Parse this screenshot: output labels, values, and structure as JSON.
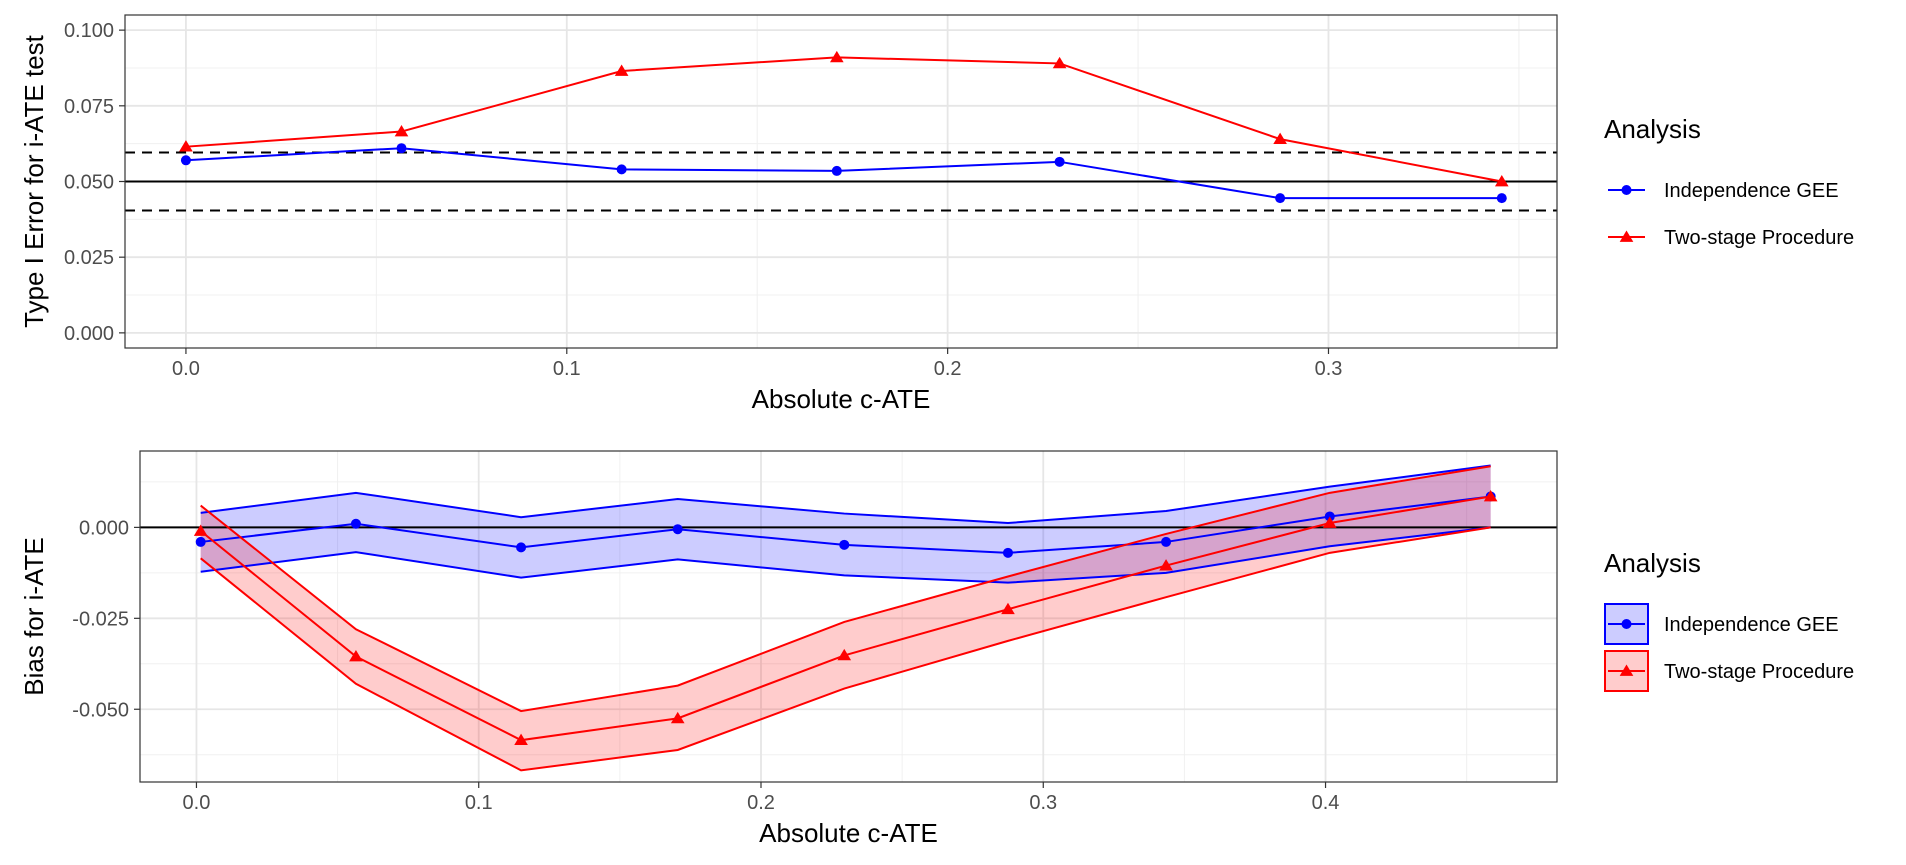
{
  "chart_data": [
    {
      "type": "line",
      "id": "top",
      "ylabel": "Type I Error for i-ATE test",
      "xlabel": "Absolute c-ATE",
      "xlim": [
        -0.016,
        0.36
      ],
      "ylim": [
        -0.005,
        0.105
      ],
      "x_ticks": [
        0.0,
        0.1,
        0.2,
        0.3
      ],
      "x_tick_labels": [
        "0.0",
        "0.1",
        "0.2",
        "0.3"
      ],
      "y_ticks": [
        0.0,
        0.025,
        0.05,
        0.075,
        0.1
      ],
      "y_tick_labels": [
        "0.000",
        "0.025",
        "0.050",
        "0.075",
        "0.100"
      ],
      "reference_lines": [
        {
          "y": 0.05,
          "style": "solid"
        },
        {
          "y": 0.0596,
          "style": "dashed"
        },
        {
          "y": 0.0404,
          "style": "dashed"
        }
      ],
      "series": [
        {
          "name": "Independence GEE",
          "color": "#0000ff",
          "marker": "circle",
          "x": [
            0.0,
            0.0566,
            0.1144,
            0.1709,
            0.2294,
            0.2873,
            0.3455
          ],
          "y": [
            0.057,
            0.061,
            0.054,
            0.0535,
            0.0565,
            0.0445,
            0.0445
          ]
        },
        {
          "name": "Two-stage Procedure",
          "color": "#ff0000",
          "marker": "triangle",
          "x": [
            0.0,
            0.0566,
            0.1144,
            0.1709,
            0.2294,
            0.2873,
            0.3455
          ],
          "y": [
            0.0615,
            0.0665,
            0.0865,
            0.091,
            0.089,
            0.064,
            0.05
          ]
        }
      ],
      "legend": {
        "title": "Analysis",
        "position": "right"
      }
    },
    {
      "type": "area",
      "id": "bottom",
      "ylabel": "Bias for i-ATE",
      "xlabel": "Absolute c-ATE",
      "xlim": [
        -0.02,
        0.482
      ],
      "ylim": [
        -0.07,
        0.021
      ],
      "x_ticks": [
        0.0,
        0.1,
        0.2,
        0.3,
        0.4
      ],
      "x_tick_labels": [
        "0.0",
        "0.1",
        "0.2",
        "0.3",
        "0.4"
      ],
      "y_ticks": [
        0.0,
        -0.025,
        -0.05
      ],
      "y_tick_labels": [
        "0.000",
        "-0.025",
        "-0.050"
      ],
      "reference_lines": [
        {
          "y": 0.0,
          "style": "solid"
        }
      ],
      "series": [
        {
          "name": "Independence GEE",
          "color": "#0000ff",
          "fill": "rgba(0,0,255,0.2)",
          "marker": "circle",
          "x": [
            0.0015,
            0.0565,
            0.115,
            0.1705,
            0.2295,
            0.2875,
            0.3435,
            0.4015,
            0.4585
          ],
          "y": [
            -0.004,
            0.001,
            -0.0055,
            -0.0005,
            -0.0048,
            -0.007,
            -0.004,
            0.003,
            0.0085
          ],
          "upper": [
            0.004,
            0.0095,
            0.0028,
            0.0078,
            0.0038,
            0.0012,
            0.0045,
            0.0112,
            0.017
          ],
          "lower": [
            -0.0122,
            -0.0068,
            -0.0138,
            -0.0088,
            -0.0132,
            -0.0152,
            -0.0125,
            -0.0052,
            0.0
          ]
        },
        {
          "name": "Two-stage Procedure",
          "color": "#ff0000",
          "fill": "rgba(255,0,0,0.2)",
          "marker": "triangle",
          "x": [
            0.0015,
            0.0565,
            0.115,
            0.1705,
            0.2295,
            0.2875,
            0.3435,
            0.4015,
            0.4585
          ],
          "y": [
            -0.001,
            -0.0355,
            -0.0585,
            -0.0525,
            -0.0352,
            -0.0225,
            -0.0105,
            0.0012,
            0.0085
          ],
          "upper": [
            0.006,
            -0.028,
            -0.0505,
            -0.0435,
            -0.026,
            -0.0135,
            -0.0018,
            0.0095,
            0.0168
          ],
          "lower": [
            -0.0085,
            -0.043,
            -0.0668,
            -0.0612,
            -0.0443,
            -0.0312,
            -0.0192,
            -0.007,
            0.0
          ]
        }
      ],
      "legend": {
        "title": "Analysis",
        "position": "right"
      }
    }
  ]
}
